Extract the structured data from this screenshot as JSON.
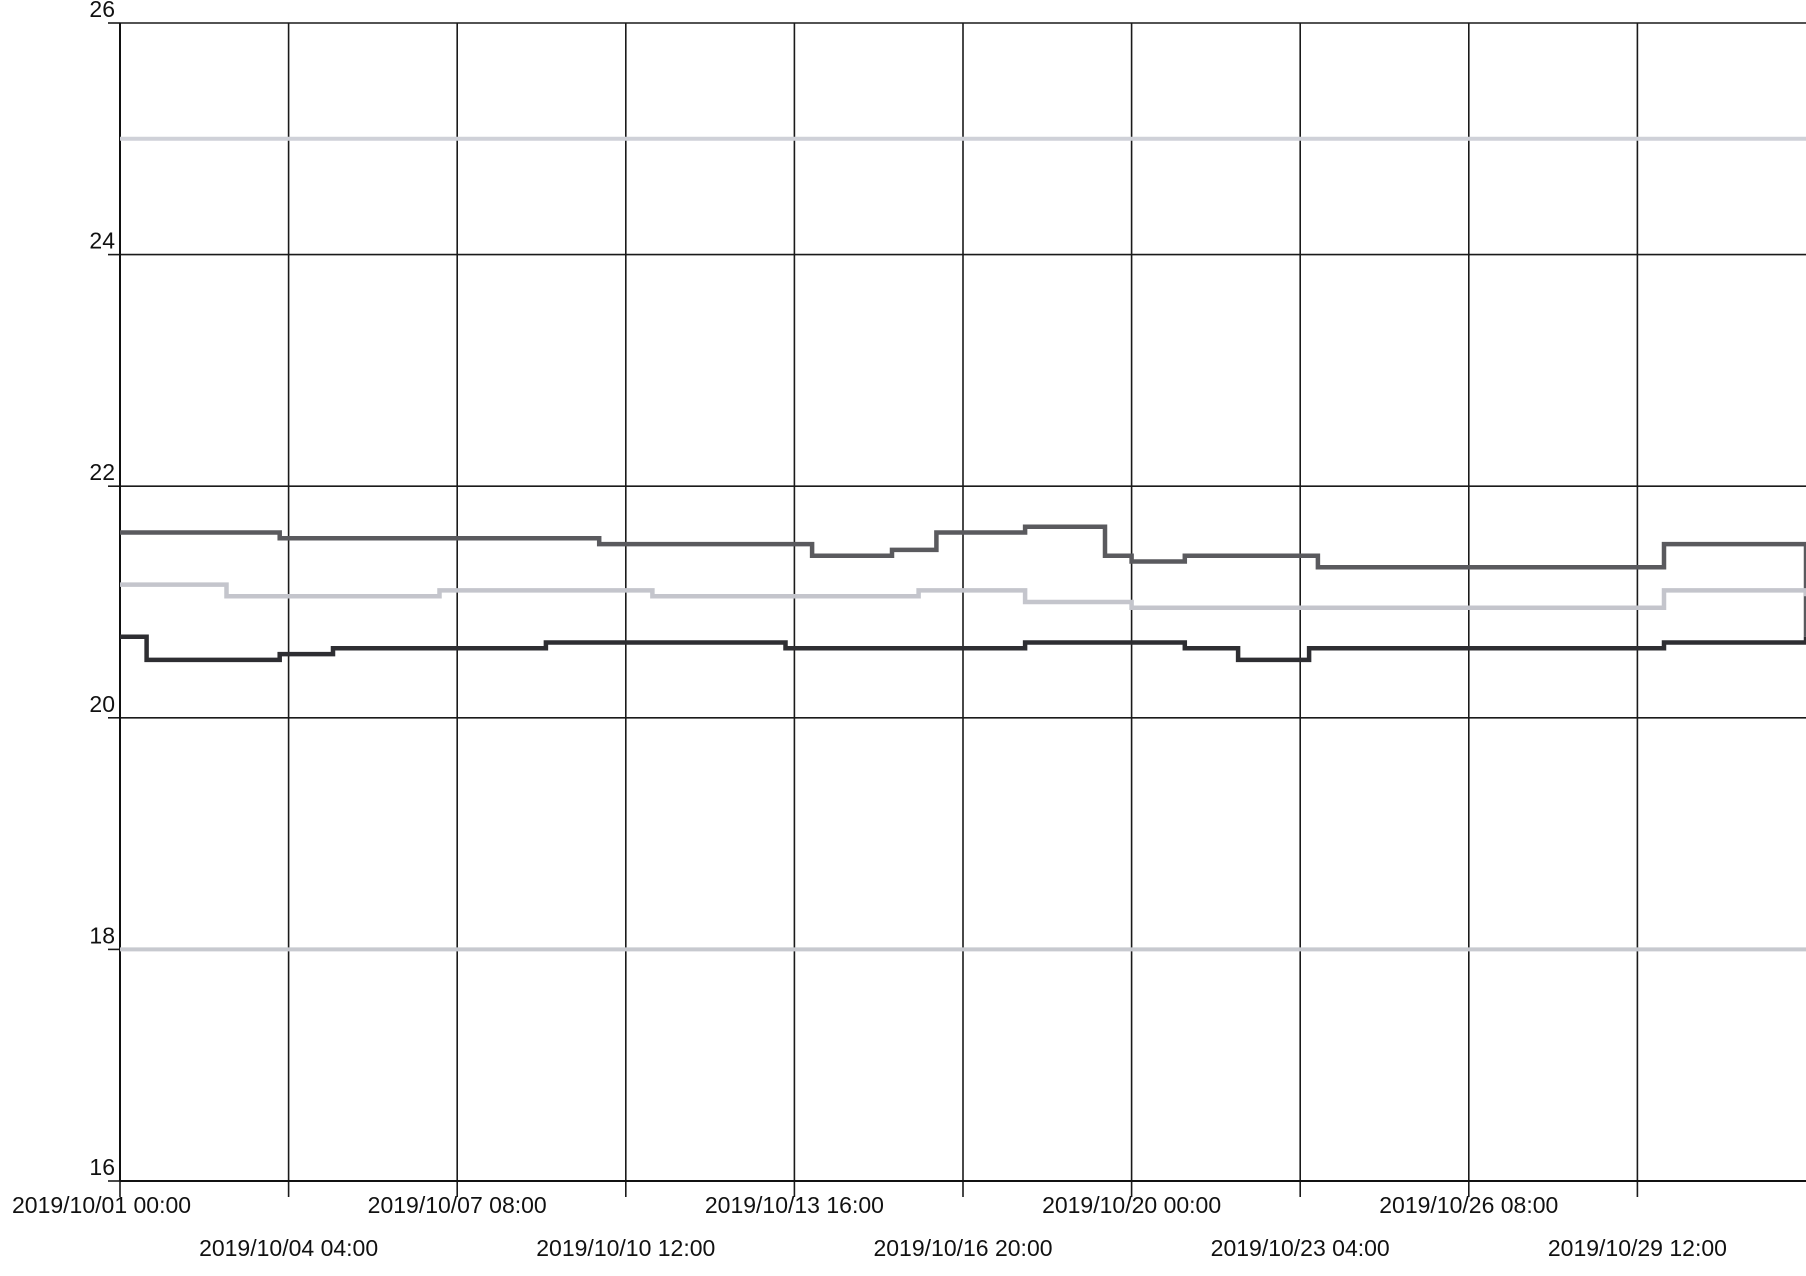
{
  "chart_data": {
    "type": "line",
    "title": "",
    "xlabel": "",
    "ylabel": "",
    "ylim": [
      16,
      26
    ],
    "xlim": [
      "2019/10/01 00:00",
      "2019/11/01 16:00"
    ],
    "grid": true,
    "legend": "none",
    "yticks": [
      {
        "value": 16,
        "label": "16"
      },
      {
        "value": 18,
        "label": "18"
      },
      {
        "value": 20,
        "label": "20"
      },
      {
        "value": 22,
        "label": "22"
      },
      {
        "value": 24,
        "label": "24"
      },
      {
        "value": 26,
        "label": "26"
      }
    ],
    "xticks": [
      {
        "value": "2019/10/01 00:00",
        "label": "2019/10/01 00:00"
      },
      {
        "value": "2019/10/04 04:00",
        "label": "2019/10/04 04:00"
      },
      {
        "value": "2019/10/07 08:00",
        "label": "2019/10/07 08:00"
      },
      {
        "value": "2019/10/10 12:00",
        "label": "2019/10/10 12:00"
      },
      {
        "value": "2019/10/13 16:00",
        "label": "2019/10/13 16:00"
      },
      {
        "value": "2019/10/16 20:00",
        "label": "2019/10/16 20:00"
      },
      {
        "value": "2019/10/20 00:00",
        "label": "2019/10/20 00:00"
      },
      {
        "value": "2019/10/23 04:00",
        "label": "2019/10/23 04:00"
      },
      {
        "value": "2019/10/26 08:00",
        "label": "2019/10/26 08:00"
      },
      {
        "value": "2019/10/29 12:00",
        "label": "2019/10/29 12:00"
      }
    ],
    "series": [
      {
        "color": "#cfd1d8",
        "x": [
          "2019/10/01 00:00",
          "2019/11/01 16:00"
        ],
        "y": [
          25.0,
          25.0
        ]
      },
      {
        "color": "#c7c9cf",
        "x": [
          "2019/10/01 00:00",
          "2019/11/01 16:00"
        ],
        "y": [
          18.0,
          18.0
        ]
      },
      {
        "color": "#5a5a5e",
        "x": [
          "2019/10/01 00:00",
          "2019/10/04 00:00",
          "2019/10/08 00:00",
          "2019/10/10 00:00",
          "2019/10/13 12:00",
          "2019/10/14 00:00",
          "2019/10/15 12:00",
          "2019/10/16 08:00",
          "2019/10/17 00:00",
          "2019/10/18 00:00",
          "2019/10/19 12:00",
          "2019/10/20 00:00",
          "2019/10/21 00:00",
          "2019/10/23 12:00",
          "2019/10/25 00:00",
          "2019/10/29 12:00",
          "2019/10/30 00:00",
          "2019/10/31 12:00",
          "2019/11/01 16:00"
        ],
        "y": [
          21.6,
          21.55,
          21.55,
          21.5,
          21.5,
          21.4,
          21.45,
          21.6,
          21.6,
          21.65,
          21.4,
          21.35,
          21.4,
          21.3,
          21.3,
          21.3,
          21.5,
          21.5,
          20.7
        ]
      },
      {
        "color": "#c4c5cc",
        "x": [
          "2019/10/01 00:00",
          "2019/10/03 00:00",
          "2019/10/05 00:00",
          "2019/10/07 00:00",
          "2019/10/09 00:00",
          "2019/10/11 00:00",
          "2019/10/13 00:00",
          "2019/10/15 00:00",
          "2019/10/16 00:00",
          "2019/10/18 00:00",
          "2019/10/20 00:00",
          "2019/10/22 00:00",
          "2019/10/24 00:00",
          "2019/10/26 00:00",
          "2019/10/28 00:00",
          "2019/10/29 12:00",
          "2019/10/30 00:00",
          "2019/11/01 16:00"
        ],
        "y": [
          21.15,
          21.05,
          21.05,
          21.1,
          21.1,
          21.05,
          21.05,
          21.05,
          21.1,
          21.0,
          20.95,
          20.95,
          20.95,
          20.95,
          20.95,
          20.95,
          21.1,
          21.05
        ]
      },
      {
        "color": "#2e2e32",
        "x": [
          "2019/10/01 00:00",
          "2019/10/01 12:00",
          "2019/10/04 00:00",
          "2019/10/05 00:00",
          "2019/10/08 00:00",
          "2019/10/09 00:00",
          "2019/10/12 00:00",
          "2019/10/13 12:00",
          "2019/10/15 00:00",
          "2019/10/18 00:00",
          "2019/10/21 00:00",
          "2019/10/22 00:00",
          "2019/10/23 08:00",
          "2019/10/25 00:00",
          "2019/10/29 12:00",
          "2019/10/30 00:00",
          "2019/11/01 16:00"
        ],
        "y": [
          20.7,
          20.5,
          20.55,
          20.6,
          20.6,
          20.65,
          20.65,
          20.6,
          20.6,
          20.65,
          20.6,
          20.5,
          20.6,
          20.6,
          20.6,
          20.65,
          20.7
        ]
      }
    ]
  }
}
